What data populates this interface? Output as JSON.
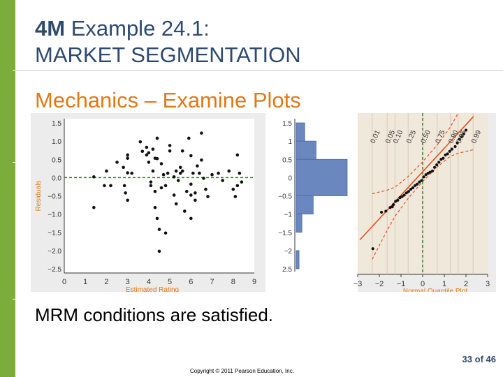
{
  "slide": {
    "title_bold": "4M",
    "title_rest": "Example 24.1:",
    "title_line2": "MARKET SEGMENTATION",
    "subtitle": "Mechanics – Examine Plots",
    "caption": "MRM conditions are satisfied.",
    "page_number": "33",
    "page_of": "of",
    "page_total": "46",
    "copyright": "Copyright © 2011 Pearson Education, Inc."
  },
  "colors": {
    "accent_green": "#7cad3a",
    "title_blue": "#2e4a6e",
    "subtitle_orange": "#e07a16",
    "axis_label_orange": "#e07a16",
    "hist_bar": "#6a87bf",
    "qq_background": "#f1e8dc",
    "reference_line": "#e0501c",
    "confidence_band": "#e0501c",
    "zero_line": "#2d7a1a"
  },
  "chart_data": [
    {
      "type": "scatter",
      "xlabel": "Estimated Rating",
      "ylabel": "Residuals",
      "xlim": [
        0,
        9
      ],
      "ylim": [
        -2.5,
        1.5
      ],
      "x_ticks": [
        "0",
        "1",
        "2",
        "3",
        "4",
        "5",
        "6",
        "7",
        "8",
        "9"
      ],
      "y_ticks": [
        "1.5",
        "1.0",
        "0.5",
        "0.0",
        "−0.5",
        "−1.0",
        "−1.5",
        "−2.0",
        "−2.5"
      ],
      "y_tick_values": [
        1.5,
        1.0,
        0.5,
        0.0,
        -0.5,
        -1.0,
        -1.5,
        -2.0,
        -2.5
      ],
      "reference_line": {
        "y": 0
      },
      "points": [
        [
          1.4,
          0.02
        ],
        [
          1.4,
          -0.82
        ],
        [
          1.9,
          -0.22
        ],
        [
          2.0,
          0.18
        ],
        [
          2.2,
          -0.22
        ],
        [
          2.5,
          0.42
        ],
        [
          2.8,
          0.28
        ],
        [
          2.85,
          -0.22
        ],
        [
          2.9,
          -0.42
        ],
        [
          3.0,
          -0.62
        ],
        [
          3.0,
          0.53
        ],
        [
          3.0,
          0.13
        ],
        [
          3.0,
          0.62
        ],
        [
          3.2,
          0.12
        ],
        [
          3.6,
          0.98
        ],
        [
          3.7,
          0.72
        ],
        [
          3.9,
          0.62
        ],
        [
          3.9,
          0.83
        ],
        [
          4.0,
          0.68
        ],
        [
          4.0,
          0.42
        ],
        [
          4.1,
          -0.12
        ],
        [
          4.1,
          -0.22
        ],
        [
          4.2,
          0.78
        ],
        [
          4.2,
          0.18
        ],
        [
          4.3,
          0.53
        ],
        [
          4.3,
          -0.38
        ],
        [
          4.3,
          -0.82
        ],
        [
          4.4,
          0.52
        ],
        [
          4.4,
          -1.12
        ],
        [
          4.5,
          -1.42
        ],
        [
          4.6,
          -0.28
        ],
        [
          4.5,
          -2.02
        ],
        [
          4.6,
          0.38
        ],
        [
          4.7,
          0.08
        ],
        [
          4.8,
          -0.22
        ],
        [
          4.8,
          -1.52
        ],
        [
          4.9,
          0.12
        ],
        [
          5.0,
          0.88
        ],
        [
          5.0,
          0.73
        ],
        [
          5.2,
          -0.48
        ],
        [
          5.2,
          0.02
        ],
        [
          5.3,
          0.18
        ],
        [
          5.3,
          -0.72
        ],
        [
          5.4,
          -0.08
        ],
        [
          5.5,
          0.12
        ],
        [
          5.5,
          0.28
        ],
        [
          5.6,
          0.18
        ],
        [
          5.6,
          0.73
        ],
        [
          5.7,
          -0.92
        ],
        [
          5.8,
          -0.38
        ],
        [
          5.9,
          1.08
        ],
        [
          6.0,
          -0.48
        ],
        [
          6.0,
          -0.18
        ],
        [
          6.0,
          -1.12
        ],
        [
          6.1,
          0.12
        ],
        [
          6.2,
          -0.62
        ],
        [
          6.3,
          0.32
        ],
        [
          6.2,
          -0.42
        ],
        [
          6.4,
          0.12
        ],
        [
          6.5,
          1.22
        ],
        [
          6.5,
          0.48
        ],
        [
          6.6,
          -0.02
        ],
        [
          6.7,
          -0.32
        ],
        [
          6.8,
          -0.52
        ],
        [
          7.0,
          0.08
        ],
        [
          7.3,
          0.12
        ],
        [
          7.5,
          -0.08
        ],
        [
          7.8,
          0.18
        ],
        [
          8.0,
          -0.32
        ],
        [
          8.1,
          -0.52
        ],
        [
          8.2,
          -0.22
        ],
        [
          8.3,
          0.12
        ],
        [
          8.4,
          -0.12
        ],
        [
          8.2,
          0.62
        ],
        [
          4.4,
          1.08
        ],
        [
          6.0,
          0.6
        ]
      ]
    },
    {
      "type": "bar",
      "orientation": "horizontal",
      "description_axis_ticks": [
        "1.5",
        "1",
        "0.5",
        "0",
        "−0.5",
        "−1",
        "−1.5",
        "−2",
        "2.5"
      ],
      "y_tick_values": [
        1.5,
        1.0,
        0.5,
        0.0,
        -0.5,
        -1.0,
        -1.5,
        -2.0,
        -2.5
      ],
      "bins": [
        {
          "from": 1.0,
          "to": 1.5,
          "count": 3
        },
        {
          "from": 0.5,
          "to": 1.0,
          "count": 7
        },
        {
          "from": -0.5,
          "to": 0.5,
          "count": 18
        },
        {
          "from": -1.0,
          "to": -0.5,
          "count": 6
        },
        {
          "from": -1.5,
          "to": -1.0,
          "count": 2
        },
        {
          "from": -2.5,
          "to": -2.0,
          "count": 1
        }
      ]
    },
    {
      "type": "scatter",
      "subtype": "normal-quantile",
      "xlabel": "Normal Quantile Plot",
      "xlim": [
        -3,
        3
      ],
      "ylim": [
        -2.5,
        1.5
      ],
      "x_ticks": [
        "−3",
        "−2",
        "−1",
        "0",
        "1",
        "2",
        "3"
      ],
      "x_tick_values": [
        -3,
        -2,
        -1,
        0,
        1,
        2,
        3
      ],
      "probability_labels": [
        "0.01",
        "0.05",
        "0.10",
        "0.25",
        "0.50",
        "0.75",
        "0.90",
        "0.95",
        "0.99"
      ],
      "probability_positions": [
        -2.33,
        -1.64,
        -1.28,
        -0.67,
        0.0,
        0.67,
        1.28,
        1.64,
        2.33
      ],
      "reference_line": {
        "x": 0
      },
      "fit_line": {
        "x": [
          -2.5,
          2.0
        ],
        "y": [
          -1.45,
          1.45
        ]
      },
      "band_offsets": [
        0.9,
        0.55,
        0.4,
        0.3,
        0.27,
        0.3,
        0.4,
        0.55,
        0.9
      ],
      "points": [
        [
          -2.3,
          -1.95
        ],
        [
          -1.9,
          -0.95
        ],
        [
          -1.7,
          -0.92
        ],
        [
          -1.5,
          -0.82
        ],
        [
          -1.4,
          -0.8
        ],
        [
          -1.35,
          -0.74
        ],
        [
          -1.25,
          -0.65
        ],
        [
          -1.15,
          -0.62
        ],
        [
          -1.05,
          -0.55
        ],
        [
          -0.95,
          -0.52
        ],
        [
          -0.85,
          -0.48
        ],
        [
          -0.75,
          -0.42
        ],
        [
          -0.65,
          -0.38
        ],
        [
          -0.55,
          -0.32
        ],
        [
          -0.45,
          -0.28
        ],
        [
          -0.35,
          -0.22
        ],
        [
          -0.25,
          -0.18
        ],
        [
          -0.15,
          -0.12
        ],
        [
          -0.05,
          -0.08
        ],
        [
          0.05,
          0.02
        ],
        [
          0.15,
          0.08
        ],
        [
          0.25,
          0.12
        ],
        [
          0.35,
          0.15
        ],
        [
          0.45,
          0.18
        ],
        [
          0.55,
          0.28
        ],
        [
          0.65,
          0.35
        ],
        [
          0.75,
          0.42
        ],
        [
          0.85,
          0.5
        ],
        [
          0.95,
          0.53
        ],
        [
          1.05,
          0.62
        ],
        [
          1.15,
          0.65
        ],
        [
          1.25,
          0.72
        ],
        [
          1.35,
          0.78
        ],
        [
          1.5,
          0.85
        ],
        [
          1.6,
          0.95
        ],
        [
          1.7,
          1.05
        ],
        [
          1.8,
          1.12
        ],
        [
          1.9,
          1.2
        ],
        [
          2.0,
          1.3
        ]
      ]
    }
  ]
}
